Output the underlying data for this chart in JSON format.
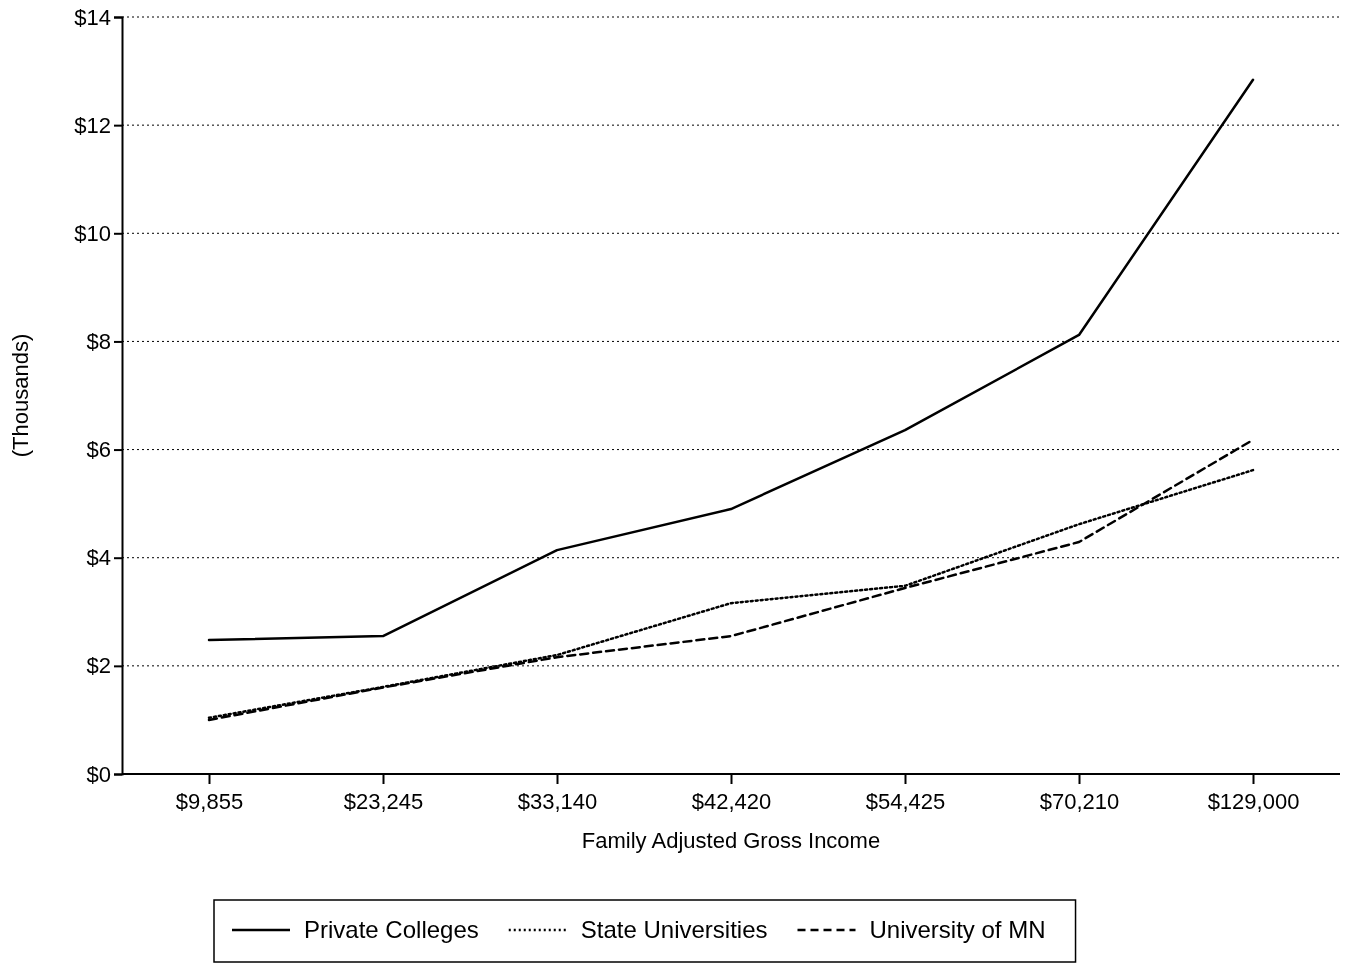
{
  "chart_data": {
    "type": "line",
    "xlabel": "Family Adjusted Gross Income",
    "ylabel": "(Thousands)",
    "categories": [
      "$9,855",
      "$23,245",
      "$33,140",
      "$42,420",
      "$54,425",
      "$70,210",
      "$129,000"
    ],
    "series": [
      {
        "name": "Private Colleges",
        "color": "#000000",
        "line_style": "solid",
        "values": [
          2.48,
          2.55,
          4.14,
          4.9,
          6.36,
          8.12,
          12.84
        ]
      },
      {
        "name": "State Universities",
        "color": "#000000",
        "line_style": "dotted",
        "values": [
          1.04,
          1.61,
          2.2,
          3.16,
          3.48,
          4.62,
          5.62
        ]
      },
      {
        "name": "University of MN",
        "color": "#000000",
        "line_style": "dashed",
        "values": [
          1.0,
          1.6,
          2.16,
          2.55,
          3.44,
          4.29,
          6.18
        ]
      }
    ],
    "ylim": [
      0,
      14
    ],
    "yticks": [
      {
        "value": 0,
        "label": "$0"
      },
      {
        "value": 2,
        "label": "$2"
      },
      {
        "value": 4,
        "label": "$4"
      },
      {
        "value": 6,
        "label": "$6"
      },
      {
        "value": 8,
        "label": "$8"
      },
      {
        "value": 10,
        "label": "$10"
      },
      {
        "value": 12,
        "label": "$12"
      },
      {
        "value": 14,
        "label": "$14"
      }
    ],
    "grid": "y",
    "legend": "bottom",
    "marker": "none"
  }
}
